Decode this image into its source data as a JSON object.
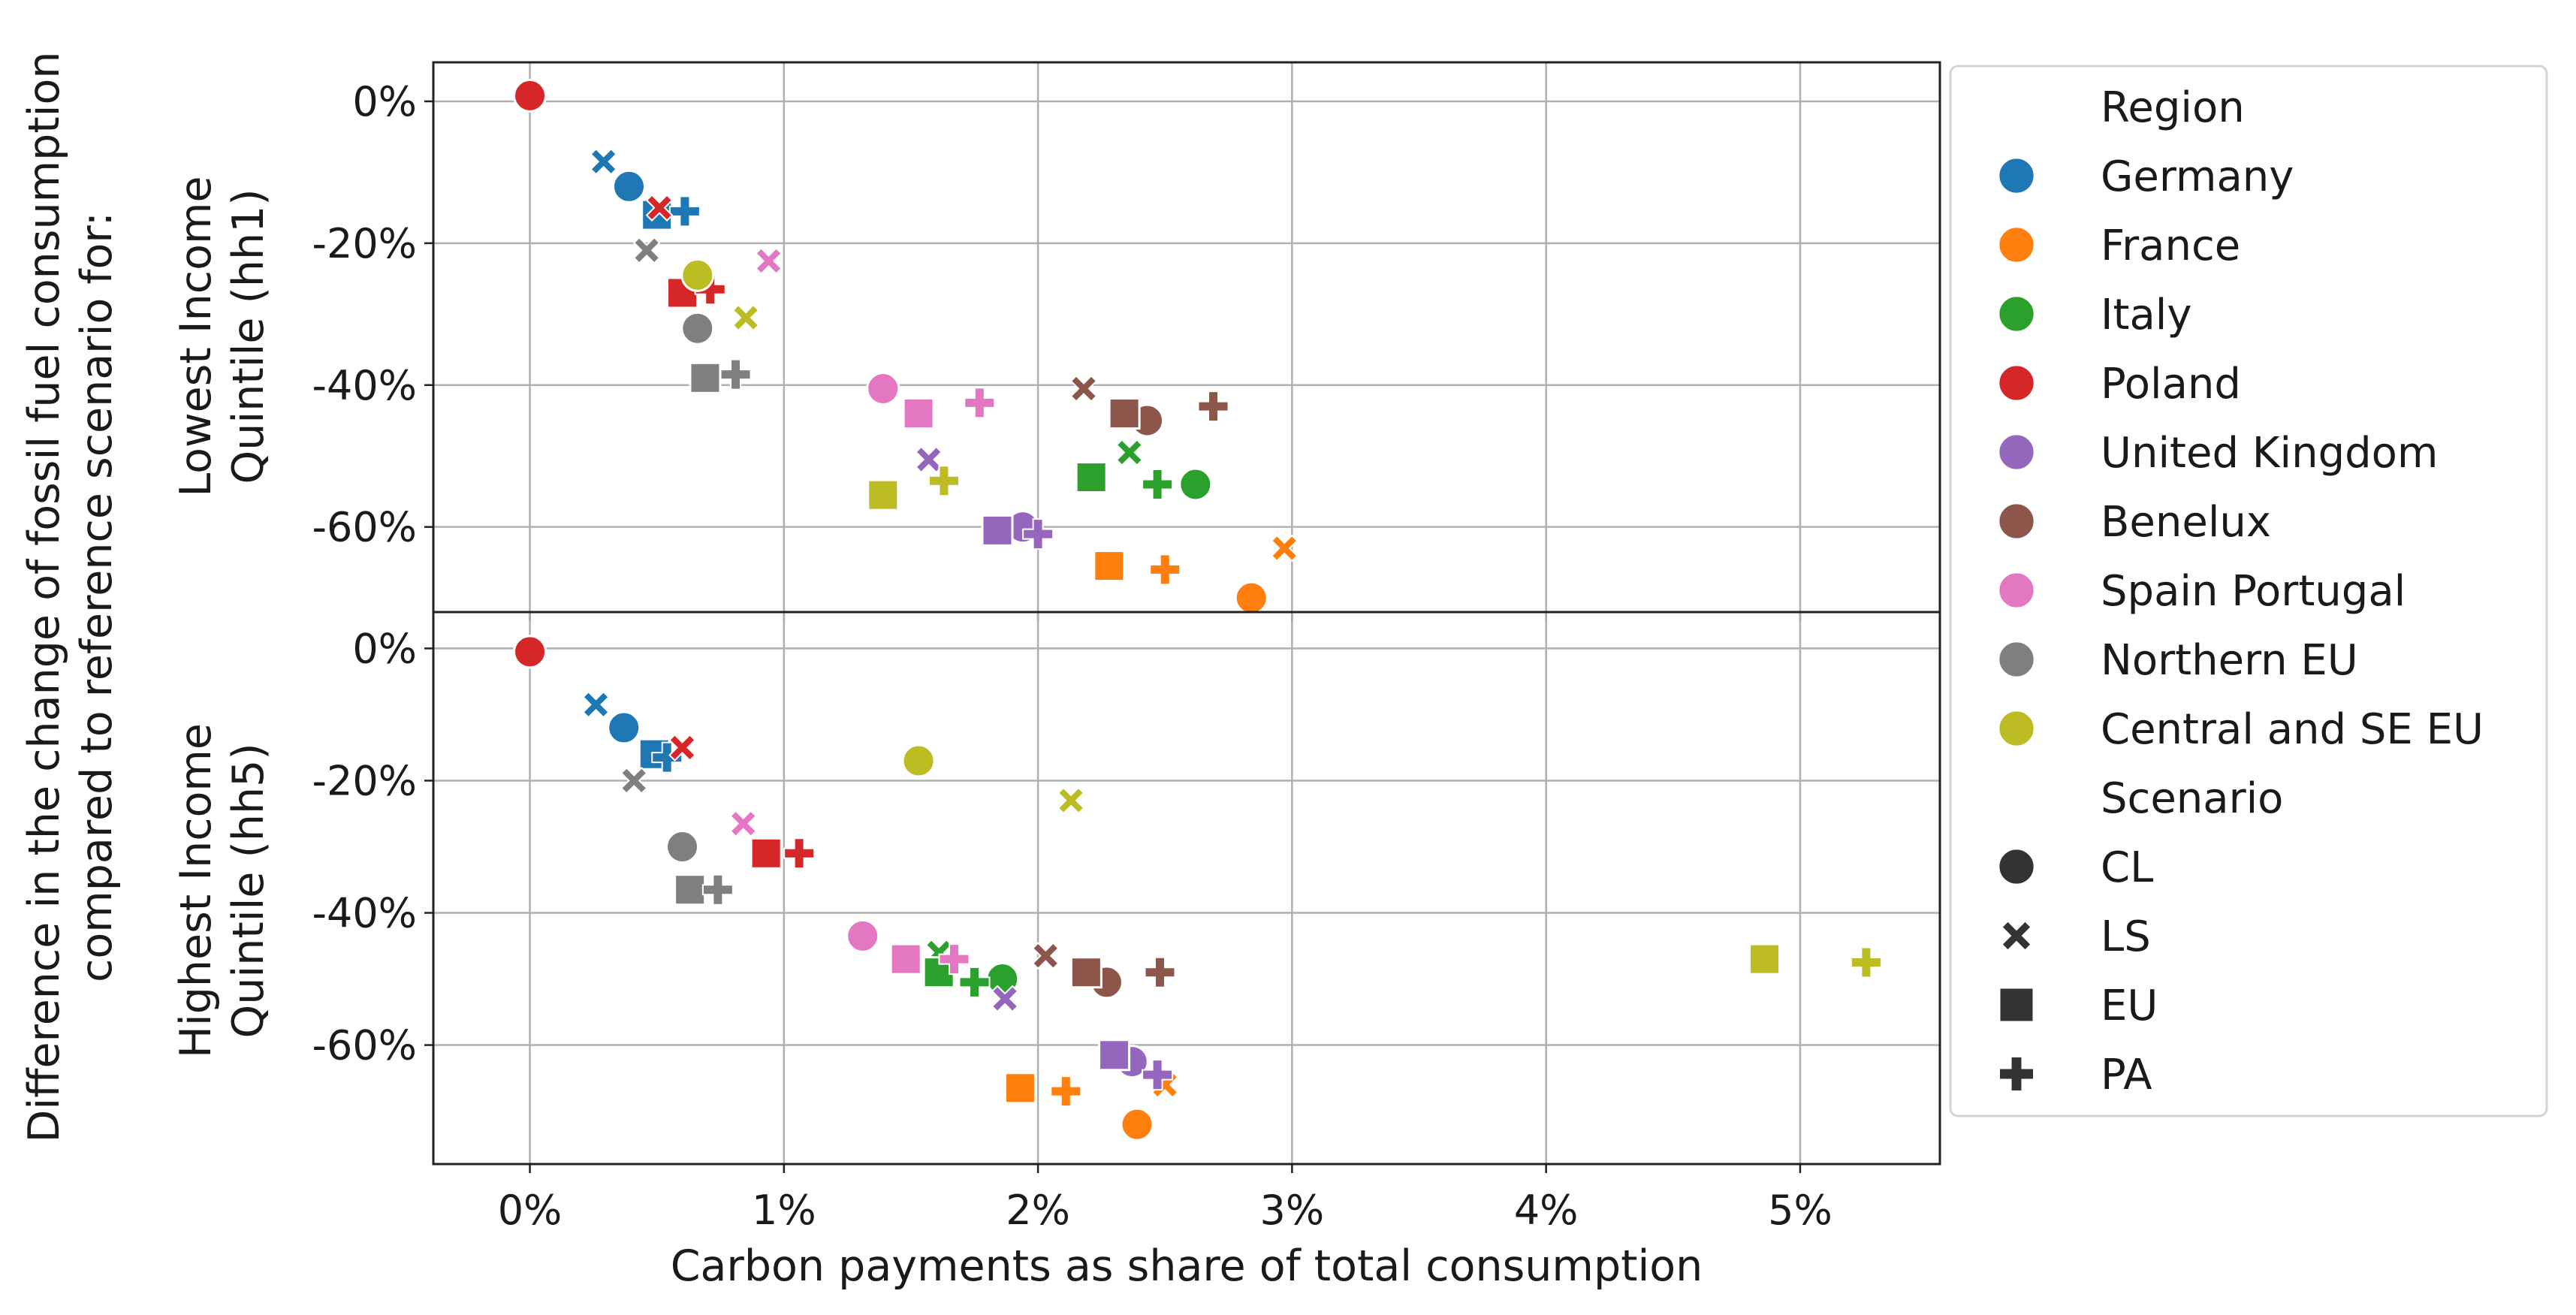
{
  "chart_data": {
    "type": "scatter",
    "title": "",
    "xlabel": "Carbon payments as share of total consumption",
    "ylabel_shared": [
      "Difference in the change of fossil fuel consumption",
      "compared to reference scenario for:"
    ],
    "x_ticks": [
      "0%",
      "1%",
      "2%",
      "3%",
      "4%",
      "5%"
    ],
    "x_tick_values": [
      0,
      1,
      2,
      3,
      4,
      5
    ],
    "xlim": [
      -0.38,
      5.55
    ],
    "grid": true,
    "legend": {
      "placement": "right",
      "region_title": "Region",
      "regions": [
        {
          "name": "Germany",
          "color": "#1f77b4"
        },
        {
          "name": "France",
          "color": "#ff7f0e"
        },
        {
          "name": "Italy",
          "color": "#2ca02c"
        },
        {
          "name": "Poland",
          "color": "#d62728"
        },
        {
          "name": "United Kingdom",
          "color": "#9467bd"
        },
        {
          "name": "Benelux",
          "color": "#8c564b"
        },
        {
          "name": "Spain  Portugal",
          "color": "#e377c2"
        },
        {
          "name": "Northern EU",
          "color": "#7f7f7f"
        },
        {
          "name": "Central and SE EU",
          "color": "#bcbd22"
        }
      ],
      "scenario_title": "Scenario",
      "scenarios": [
        {
          "name": "CL",
          "marker": "circle"
        },
        {
          "name": "LS",
          "marker": "x"
        },
        {
          "name": "EU",
          "marker": "square"
        },
        {
          "name": "PA",
          "marker": "plus"
        }
      ]
    },
    "panels": [
      {
        "ylabel": [
          "Lowest Income",
          "Quintile (hh1)"
        ],
        "y_ticks": [
          "0%",
          "-20%",
          "-40%",
          "-60%"
        ],
        "y_tick_values": [
          0,
          -20,
          -40,
          -60
        ],
        "ylim": [
          -72,
          5.5
        ],
        "points": [
          {
            "region": "Germany",
            "scenario": "CL",
            "x": 0.39,
            "y": -12
          },
          {
            "region": "Germany",
            "scenario": "LS",
            "x": 0.29,
            "y": -8.5
          },
          {
            "region": "Germany",
            "scenario": "EU",
            "x": 0.5,
            "y": -16
          },
          {
            "region": "Germany",
            "scenario": "PA",
            "x": 0.61,
            "y": -15.5
          },
          {
            "region": "France",
            "scenario": "CL",
            "x": 2.84,
            "y": -70
          },
          {
            "region": "France",
            "scenario": "LS",
            "x": 2.97,
            "y": -63
          },
          {
            "region": "France",
            "scenario": "EU",
            "x": 2.28,
            "y": -65.5
          },
          {
            "region": "France",
            "scenario": "PA",
            "x": 2.5,
            "y": -66
          },
          {
            "region": "Italy",
            "scenario": "CL",
            "x": 2.62,
            "y": -54
          },
          {
            "region": "Italy",
            "scenario": "LS",
            "x": 2.36,
            "y": -49.5
          },
          {
            "region": "Italy",
            "scenario": "EU",
            "x": 2.21,
            "y": -53
          },
          {
            "region": "Italy",
            "scenario": "PA",
            "x": 2.47,
            "y": -54
          },
          {
            "region": "Poland",
            "scenario": "CL",
            "x": 0.0,
            "y": 0.8
          },
          {
            "region": "Poland",
            "scenario": "LS",
            "x": 0.51,
            "y": -15
          },
          {
            "region": "Poland",
            "scenario": "EU",
            "x": 0.6,
            "y": -27
          },
          {
            "region": "Poland",
            "scenario": "PA",
            "x": 0.71,
            "y": -26.5
          },
          {
            "region": "United Kingdom",
            "scenario": "CL",
            "x": 1.94,
            "y": -60
          },
          {
            "region": "United Kingdom",
            "scenario": "LS",
            "x": 1.57,
            "y": -50.5
          },
          {
            "region": "United Kingdom",
            "scenario": "EU",
            "x": 1.84,
            "y": -60.5
          },
          {
            "region": "United Kingdom",
            "scenario": "PA",
            "x": 2.0,
            "y": -61
          },
          {
            "region": "Benelux",
            "scenario": "CL",
            "x": 2.43,
            "y": -45
          },
          {
            "region": "Benelux",
            "scenario": "LS",
            "x": 2.18,
            "y": -40.5
          },
          {
            "region": "Benelux",
            "scenario": "EU",
            "x": 2.34,
            "y": -44
          },
          {
            "region": "Benelux",
            "scenario": "PA",
            "x": 2.69,
            "y": -43
          },
          {
            "region": "Spain  Portugal",
            "scenario": "CL",
            "x": 1.39,
            "y": -40.5
          },
          {
            "region": "Spain  Portugal",
            "scenario": "LS",
            "x": 0.94,
            "y": -22.5
          },
          {
            "region": "Spain  Portugal",
            "scenario": "EU",
            "x": 1.53,
            "y": -44
          },
          {
            "region": "Spain  Portugal",
            "scenario": "PA",
            "x": 1.77,
            "y": -42.5
          },
          {
            "region": "Northern EU",
            "scenario": "CL",
            "x": 0.66,
            "y": -32
          },
          {
            "region": "Northern EU",
            "scenario": "LS",
            "x": 0.46,
            "y": -21
          },
          {
            "region": "Northern EU",
            "scenario": "EU",
            "x": 0.69,
            "y": -39
          },
          {
            "region": "Northern EU",
            "scenario": "PA",
            "x": 0.81,
            "y": -38.5
          },
          {
            "region": "Central and SE EU",
            "scenario": "CL",
            "x": 0.66,
            "y": -24.5
          },
          {
            "region": "Central and SE EU",
            "scenario": "LS",
            "x": 0.85,
            "y": -30.5
          },
          {
            "region": "Central and SE EU",
            "scenario": "EU",
            "x": 1.39,
            "y": -55.5
          },
          {
            "region": "Central and SE EU",
            "scenario": "PA",
            "x": 1.63,
            "y": -53.5
          }
        ]
      },
      {
        "ylabel": [
          "Highest Income",
          "Quintile (hh5)"
        ],
        "y_ticks": [
          "0%",
          "-20%",
          "-40%",
          "-60%"
        ],
        "y_tick_values": [
          0,
          -20,
          -40,
          -60
        ],
        "ylim": [
          -78,
          5.5
        ],
        "points": [
          {
            "region": "Germany",
            "scenario": "CL",
            "x": 0.37,
            "y": -12
          },
          {
            "region": "Germany",
            "scenario": "LS",
            "x": 0.26,
            "y": -8.5
          },
          {
            "region": "Germany",
            "scenario": "EU",
            "x": 0.49,
            "y": -16
          },
          {
            "region": "Germany",
            "scenario": "PA",
            "x": 0.54,
            "y": -16.5
          },
          {
            "region": "France",
            "scenario": "CL",
            "x": 2.39,
            "y": -72
          },
          {
            "region": "France",
            "scenario": "LS",
            "x": 2.5,
            "y": -66
          },
          {
            "region": "France",
            "scenario": "EU",
            "x": 1.93,
            "y": -66.5
          },
          {
            "region": "France",
            "scenario": "PA",
            "x": 2.11,
            "y": -67
          },
          {
            "region": "Italy",
            "scenario": "CL",
            "x": 1.86,
            "y": -50
          },
          {
            "region": "Italy",
            "scenario": "LS",
            "x": 1.61,
            "y": -46
          },
          {
            "region": "Italy",
            "scenario": "EU",
            "x": 1.61,
            "y": -49
          },
          {
            "region": "Italy",
            "scenario": "PA",
            "x": 1.75,
            "y": -50.5
          },
          {
            "region": "Poland",
            "scenario": "CL",
            "x": 0.0,
            "y": -0.5
          },
          {
            "region": "Poland",
            "scenario": "LS",
            "x": 0.6,
            "y": -15
          },
          {
            "region": "Poland",
            "scenario": "EU",
            "x": 0.93,
            "y": -31
          },
          {
            "region": "Poland",
            "scenario": "PA",
            "x": 1.06,
            "y": -31
          },
          {
            "region": "United Kingdom",
            "scenario": "CL",
            "x": 2.37,
            "y": -62.5
          },
          {
            "region": "United Kingdom",
            "scenario": "LS",
            "x": 1.87,
            "y": -53
          },
          {
            "region": "United Kingdom",
            "scenario": "EU",
            "x": 2.3,
            "y": -61.5
          },
          {
            "region": "United Kingdom",
            "scenario": "PA",
            "x": 2.47,
            "y": -64.5
          },
          {
            "region": "Benelux",
            "scenario": "CL",
            "x": 2.27,
            "y": -50.5
          },
          {
            "region": "Benelux",
            "scenario": "LS",
            "x": 2.03,
            "y": -46.5
          },
          {
            "region": "Benelux",
            "scenario": "EU",
            "x": 2.19,
            "y": -49
          },
          {
            "region": "Benelux",
            "scenario": "PA",
            "x": 2.48,
            "y": -49
          },
          {
            "region": "Spain  Portugal",
            "scenario": "CL",
            "x": 1.31,
            "y": -43.5
          },
          {
            "region": "Spain  Portugal",
            "scenario": "LS",
            "x": 0.84,
            "y": -26.5
          },
          {
            "region": "Spain  Portugal",
            "scenario": "EU",
            "x": 1.48,
            "y": -47
          },
          {
            "region": "Spain  Portugal",
            "scenario": "PA",
            "x": 1.67,
            "y": -47
          },
          {
            "region": "Northern EU",
            "scenario": "CL",
            "x": 0.6,
            "y": -30
          },
          {
            "region": "Northern EU",
            "scenario": "LS",
            "x": 0.41,
            "y": -20
          },
          {
            "region": "Northern EU",
            "scenario": "EU",
            "x": 0.63,
            "y": -36.5
          },
          {
            "region": "Northern EU",
            "scenario": "PA",
            "x": 0.74,
            "y": -36.5
          },
          {
            "region": "Central and SE EU",
            "scenario": "CL",
            "x": 1.53,
            "y": -17
          },
          {
            "region": "Central and SE EU",
            "scenario": "LS",
            "x": 2.13,
            "y": -23
          },
          {
            "region": "Central and SE EU",
            "scenario": "EU",
            "x": 4.86,
            "y": -47
          },
          {
            "region": "Central and SE EU",
            "scenario": "PA",
            "x": 5.26,
            "y": -47.5
          }
        ]
      }
    ]
  }
}
